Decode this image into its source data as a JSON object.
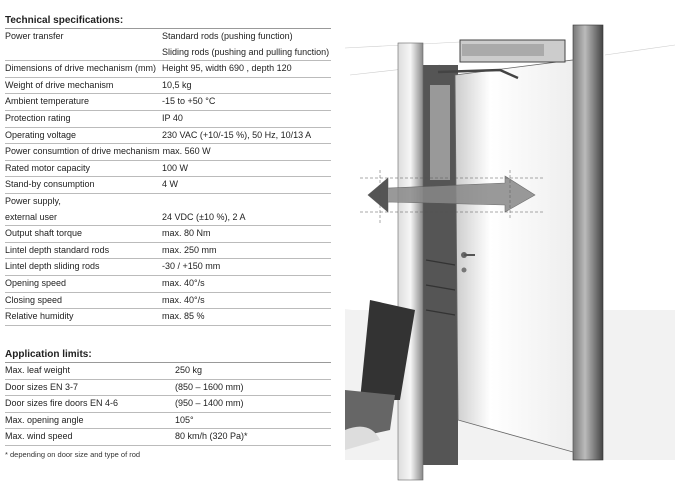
{
  "technical": {
    "title": "Technical specifications:",
    "rows": [
      {
        "label": "Power transfer",
        "value": "Standard rods (pushing function)"
      },
      {
        "label": "",
        "value": "Sliding rods (pushing and pulling function)"
      },
      {
        "label": "Dimensions of drive mechanism (mm)",
        "value": "Height 95, width 690 , depth 120"
      },
      {
        "label": "Weight of drive mechanism",
        "value": "10,5 kg"
      },
      {
        "label": "Ambient temperature",
        "value": " -15 to +50 °C"
      },
      {
        "label": "Protection rating",
        "value": "IP 40"
      },
      {
        "label": "Operating voltage",
        "value": "230 VAC (+10/-15 %), 50 Hz, 10/13 A"
      },
      {
        "label": "Power consumtion of drive mechanism",
        "value": "max. 560 W"
      },
      {
        "label": "Rated motor capacity",
        "value": "100 W"
      },
      {
        "label": "Stand-by consumption",
        "value": "4 W"
      },
      {
        "label": "Power supply,",
        "value": ""
      },
      {
        "label": "external user",
        "value": "24 VDC (±10 %), 2 A"
      },
      {
        "label": "Output shaft torque",
        "value": "max. 80 Nm"
      },
      {
        "label": "Lintel depth standard rods",
        "value": "max. 250 mm"
      },
      {
        "label": "Lintel depth sliding rods",
        "value": "-30 / +150 mm"
      },
      {
        "label": "Opening speed",
        "value": "max. 40°/s"
      },
      {
        "label": "Closing speed",
        "value": "max. 40°/s"
      },
      {
        "label": "Relative humidity",
        "value": "max. 85 %"
      }
    ]
  },
  "limits": {
    "title": "Application limits:",
    "rows": [
      {
        "label": "Max. leaf weight",
        "value": "250 kg"
      },
      {
        "label": "Door sizes EN 3-7",
        "value": "(850 – 1600 mm)"
      },
      {
        "label": "Door sizes fire doors EN 4-6",
        "value": "(950 – 1400 mm)"
      },
      {
        "label": "Max. opening angle",
        "value": "105°"
      },
      {
        "label": "Max. wind speed",
        "value": "80 km/h (320 Pa)*"
      }
    ],
    "footnote": "* depending on door size and type of rod"
  },
  "illustration": {
    "subject": "door-with-swing-operator",
    "arrow_color": "#666666"
  }
}
